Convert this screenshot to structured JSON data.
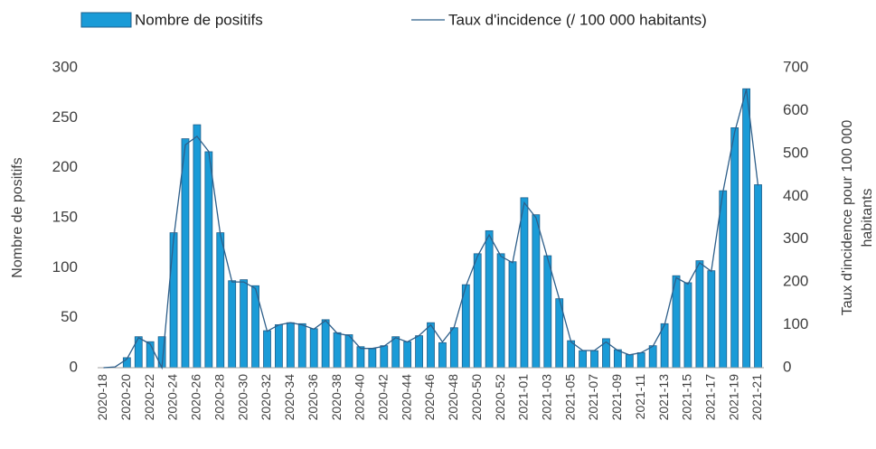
{
  "chart_data": {
    "type": "bar-line",
    "categories": [
      "2020-18",
      null,
      "2020-20",
      null,
      "2020-22",
      null,
      "2020-24",
      null,
      "2020-26",
      null,
      "2020-28",
      null,
      "2020-30",
      null,
      "2020-32",
      null,
      "2020-34",
      null,
      "2020-36",
      null,
      "2020-38",
      null,
      "2020-40",
      null,
      "2020-42",
      null,
      "2020-44",
      null,
      "2020-46",
      null,
      "2020-48",
      null,
      "2020-50",
      null,
      "2020-52",
      null,
      "2021-01",
      null,
      "2021-03",
      null,
      "2021-05",
      null,
      "2021-07",
      null,
      "2021-09",
      null,
      "2021-11",
      null,
      "2021-13",
      null,
      "2021-15",
      null,
      "2021-17",
      null,
      "2021-19",
      null,
      "2021-21"
    ],
    "series": [
      {
        "name": "Nombre de positifs",
        "type": "bar",
        "color": "#1a9bd7",
        "axis": "y",
        "values": [
          0,
          0,
          10,
          31,
          26,
          31,
          135,
          229,
          243,
          216,
          135,
          87,
          88,
          82,
          37,
          43,
          45,
          44,
          39,
          48,
          35,
          33,
          21,
          19,
          22,
          31,
          26,
          32,
          45,
          25,
          40,
          83,
          114,
          137,
          114,
          106,
          170,
          153,
          112,
          69,
          27,
          17,
          17,
          29,
          18,
          13,
          15,
          22,
          44,
          92,
          85,
          107,
          97,
          177,
          240,
          279,
          183
        ]
      },
      {
        "name": "Taux d'incidence (/ 100 000 habitants)",
        "type": "line",
        "color": "#2e5f8a",
        "axis": "y2",
        "values": [
          0,
          2,
          20,
          70,
          55,
          0,
          300,
          520,
          540,
          505,
          310,
          200,
          200,
          185,
          85,
          100,
          105,
          100,
          90,
          110,
          80,
          75,
          45,
          45,
          50,
          70,
          60,
          75,
          100,
          60,
          95,
          190,
          260,
          310,
          260,
          245,
          385,
          350,
          255,
          160,
          60,
          40,
          40,
          60,
          40,
          30,
          35,
          50,
          100,
          210,
          195,
          245,
          225,
          410,
          550,
          650,
          425
        ]
      }
    ],
    "ylabel": "Nombre de positifs",
    "y2label": [
      "Taux d'incidence pour 100 000",
      "habitants"
    ],
    "ylim": [
      0,
      300
    ],
    "yticks": [
      0,
      50,
      100,
      150,
      200,
      250,
      300
    ],
    "y2lim": [
      0,
      700
    ],
    "y2ticks": [
      0,
      100,
      200,
      300,
      400,
      500,
      600,
      700
    ],
    "grid": false,
    "legend": "top"
  }
}
